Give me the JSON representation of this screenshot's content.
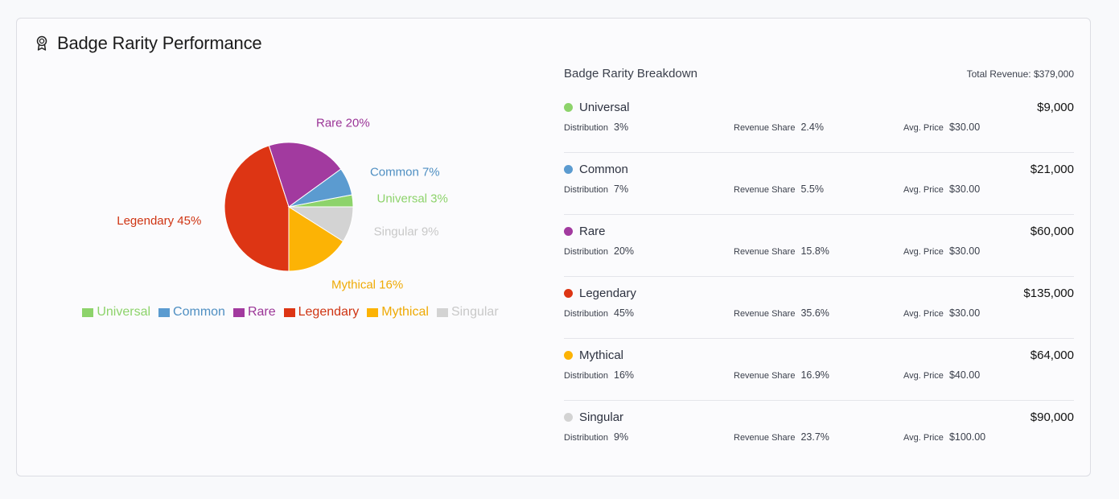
{
  "header": {
    "title": "Badge Rarity Performance",
    "icon": "award-icon"
  },
  "chart_data": {
    "type": "pie",
    "categories": [
      "Universal",
      "Common",
      "Rare",
      "Legendary",
      "Mythical",
      "Singular"
    ],
    "values": [
      3,
      7,
      20,
      45,
      16,
      9
    ],
    "slice_labels": [
      "Universal 3%",
      "Common 7%",
      "Rare 20%",
      "Legendary 45%",
      "Mythical 16%",
      "Singular 9%"
    ],
    "colors": [
      "#8dd36b",
      "#5b9bd0",
      "#a23a9f",
      "#dd3514",
      "#fcb305",
      "#d3d3d3"
    ],
    "legend_position": "bottom"
  },
  "breakdown": {
    "title": "Badge Rarity Breakdown",
    "total": "Total Revenue: $379,000",
    "labels": {
      "distribution": "Distribution",
      "revenue_share": "Revenue Share",
      "avg_price": "Avg. Price"
    },
    "rows": [
      {
        "name": "Universal",
        "amount": "$9,000",
        "distribution": "3%",
        "revenue_share": "2.4%",
        "avg_price": "$30.00",
        "color": "#8dd36b"
      },
      {
        "name": "Common",
        "amount": "$21,000",
        "distribution": "7%",
        "revenue_share": "5.5%",
        "avg_price": "$30.00",
        "color": "#5b9bd0"
      },
      {
        "name": "Rare",
        "amount": "$60,000",
        "distribution": "20%",
        "revenue_share": "15.8%",
        "avg_price": "$30.00",
        "color": "#a23a9f"
      },
      {
        "name": "Legendary",
        "amount": "$135,000",
        "distribution": "45%",
        "revenue_share": "35.6%",
        "avg_price": "$30.00",
        "color": "#dd3514"
      },
      {
        "name": "Mythical",
        "amount": "$64,000",
        "distribution": "16%",
        "revenue_share": "16.9%",
        "avg_price": "$40.00",
        "color": "#fcb305"
      },
      {
        "name": "Singular",
        "amount": "$90,000",
        "distribution": "9%",
        "revenue_share": "23.7%",
        "avg_price": "$100.00",
        "color": "#d3d3d3"
      }
    ]
  }
}
